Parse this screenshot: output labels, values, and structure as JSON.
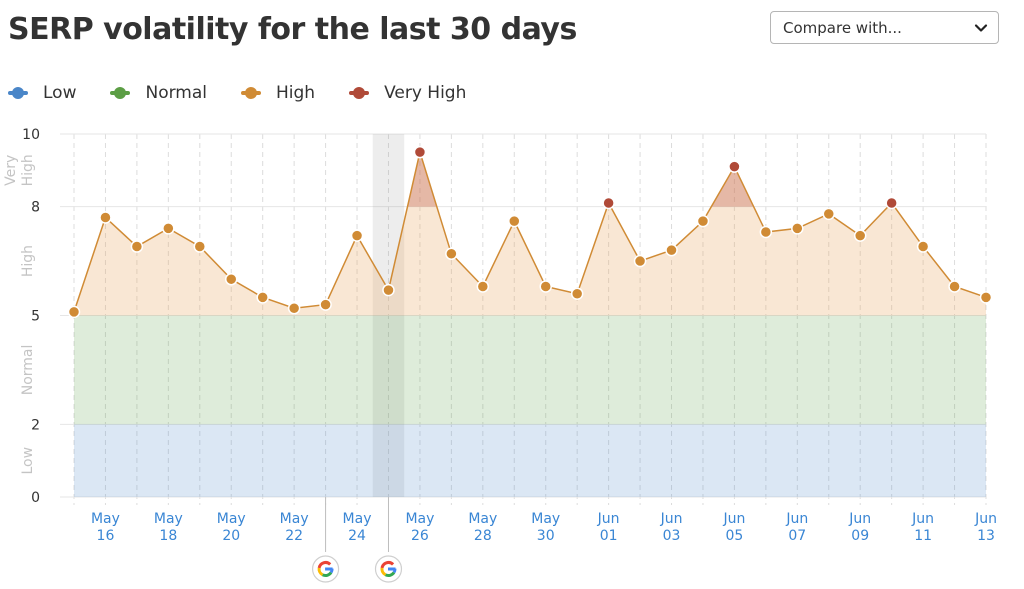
{
  "title": "SERP volatility for the last 30 days",
  "compare_dropdown": {
    "label": "Compare with..."
  },
  "legend": [
    {
      "label": "Low",
      "color": "#4a86c8"
    },
    {
      "label": "Normal",
      "color": "#5c9e45"
    },
    {
      "label": "High",
      "color": "#d08b35"
    },
    {
      "label": "Very High",
      "color": "#b04a38"
    }
  ],
  "chart_data": {
    "type": "area",
    "x": [
      "May 15",
      "May 16",
      "May 17",
      "May 18",
      "May 19",
      "May 20",
      "May 21",
      "May 22",
      "May 23",
      "May 24",
      "May 25",
      "May 26",
      "May 27",
      "May 28",
      "May 29",
      "May 30",
      "May 31",
      "Jun 01",
      "Jun 02",
      "Jun 03",
      "Jun 04",
      "Jun 05",
      "Jun 06",
      "Jun 07",
      "Jun 08",
      "Jun 09",
      "Jun 10",
      "Jun 11",
      "Jun 12",
      "Jun 13"
    ],
    "values": [
      5.1,
      7.7,
      6.9,
      7.4,
      6.9,
      6.0,
      5.5,
      5.2,
      5.3,
      7.2,
      5.7,
      9.5,
      6.7,
      5.8,
      7.6,
      5.8,
      5.6,
      8.1,
      6.5,
      6.8,
      7.6,
      9.1,
      7.3,
      7.4,
      7.8,
      7.2,
      8.1,
      6.9,
      5.8,
      5.5
    ],
    "point_levels": [
      "high",
      "high",
      "high",
      "high",
      "high",
      "high",
      "high",
      "high",
      "high",
      "high",
      "high",
      "very-high",
      "high",
      "high",
      "high",
      "high",
      "high",
      "very-high",
      "high",
      "high",
      "high",
      "very-high",
      "high",
      "high",
      "high",
      "high",
      "very-high",
      "high",
      "high",
      "high"
    ],
    "ylim": [
      0,
      10
    ],
    "yticks": [
      0,
      2,
      5,
      8,
      10
    ],
    "ytick_labels": [
      "0",
      "2",
      "5",
      "8",
      "10"
    ],
    "bands": [
      {
        "name": "Low",
        "from": 0,
        "to": 2,
        "color": "#4a86c8"
      },
      {
        "name": "Normal",
        "from": 2,
        "to": 5,
        "color": "#5c9e45"
      },
      {
        "name": "High",
        "from": 5,
        "to": 8,
        "color": "#d08b35"
      },
      {
        "name": "Very High",
        "from": 8,
        "to": 10,
        "color": "#b04a38"
      }
    ],
    "band_labels": [
      "Low",
      "Normal",
      "High",
      "Very High"
    ],
    "xtick_labels": [
      [
        "May",
        "16"
      ],
      [
        "May",
        "18"
      ],
      [
        "May",
        "20"
      ],
      [
        "May",
        "22"
      ],
      [
        "May",
        "24"
      ],
      [
        "May",
        "26"
      ],
      [
        "May",
        "28"
      ],
      [
        "May",
        "30"
      ],
      [
        "Jun",
        "01"
      ],
      [
        "Jun",
        "03"
      ],
      [
        "Jun",
        "05"
      ],
      [
        "Jun",
        "07"
      ],
      [
        "Jun",
        "09"
      ],
      [
        "Jun",
        "11"
      ],
      [
        "Jun",
        "13"
      ]
    ],
    "xtick_dates": [
      "May 16",
      "May 18",
      "May 20",
      "May 22",
      "May 24",
      "May 26",
      "May 28",
      "May 30",
      "Jun 01",
      "Jun 03",
      "Jun 05",
      "Jun 07",
      "Jun 09",
      "Jun 11",
      "Jun 13"
    ],
    "highlight_date": "May 25",
    "google_update_dates": [
      "May 23",
      "May 25"
    ],
    "grid": true,
    "colors": {
      "line": "#d08b35",
      "point_high": "#d08b35",
      "point_very_high": "#b04a38",
      "tick_label": "#3a86d4"
    }
  }
}
